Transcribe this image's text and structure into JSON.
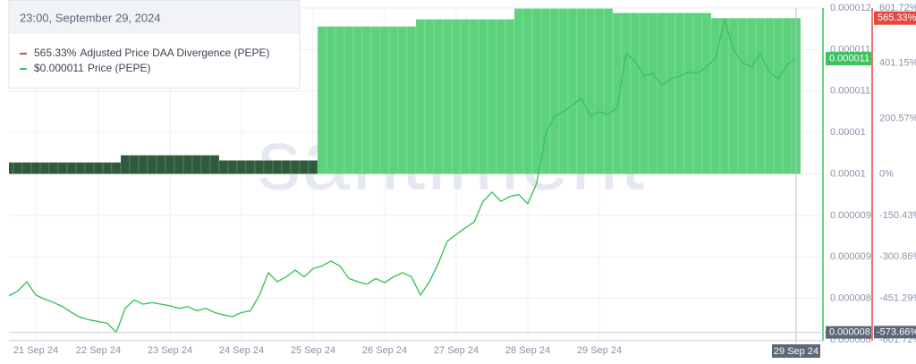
{
  "chart_data": {
    "type": "combo",
    "watermark": "santiment",
    "tooltip_title": "23:00, September 29, 2024",
    "categories": [
      null,
      null,
      null,
      "21 Sep 24",
      null,
      null,
      null,
      null,
      null,
      null,
      "22 Sep 24",
      null,
      null,
      null,
      null,
      null,
      null,
      null,
      "23 Sep 24",
      null,
      null,
      null,
      null,
      null,
      null,
      null,
      "24 Sep 24",
      null,
      null,
      null,
      null,
      null,
      null,
      null,
      "25 Sep 24",
      null,
      null,
      null,
      null,
      null,
      null,
      null,
      "26 Sep 24",
      null,
      null,
      null,
      null,
      null,
      null,
      null,
      "27 Sep 24",
      null,
      null,
      null,
      null,
      null,
      null,
      null,
      "28 Sep 24",
      null,
      null,
      null,
      null,
      null,
      null,
      null,
      "29 Sep 24",
      null,
      null,
      null,
      null,
      null,
      null,
      null,
      null,
      null,
      null,
      null,
      null,
      null,
      null,
      null,
      null,
      null,
      null,
      null,
      null,
      null,
      null
    ],
    "series": [
      {
        "name": "Adjusted Price DAA Divergence (PEPE)",
        "type": "bar",
        "axis": "y2",
        "color": "#e5483f",
        "legend_value": {
          "value": 565.33,
          "label": "565.33%"
        },
        "values": [
          42,
          42,
          42,
          42,
          42,
          42,
          42,
          42,
          42,
          42,
          42,
          42,
          42,
          68,
          68,
          68,
          68,
          68,
          68,
          68,
          68,
          68,
          68,
          68,
          49,
          49,
          49,
          49,
          49,
          49,
          49,
          49,
          49,
          49,
          49,
          535,
          535,
          535,
          535,
          535,
          535,
          535,
          535,
          535,
          535,
          535,
          561,
          561,
          561,
          561,
          561,
          561,
          561,
          561,
          561,
          561,
          561,
          600,
          600,
          600,
          600,
          600,
          600,
          600,
          600,
          600,
          600,
          600,
          584,
          584,
          584,
          584,
          584,
          584,
          584,
          584,
          584,
          584,
          584,
          565.33,
          565.33,
          565.33,
          565.33,
          565.33,
          565.33,
          565.33,
          565.33,
          565.33,
          565.33
        ],
        "colors": [
          "#2f5b3c",
          "#2f5b3c",
          "#2f5b3c",
          "#2f5b3c",
          "#2f5b3c",
          "#2f5b3c",
          "#2f5b3c",
          "#2f5b3c",
          "#2f5b3c",
          "#2f5b3c",
          "#2f5b3c",
          "#2f5b3c",
          "#2f5b3c",
          "#2f5b3c",
          "#2f5b3c",
          "#2f5b3c",
          "#2f5b3c",
          "#2f5b3c",
          "#2f5b3c",
          "#2f5b3c",
          "#2f5b3c",
          "#2f5b3c",
          "#2f5b3c",
          "#2f5b3c",
          "#2f5b3c",
          "#2f5b3c",
          "#2f5b3c",
          "#2f5b3c",
          "#2f5b3c",
          "#2f5b3c",
          "#2f5b3c",
          "#2f5b3c",
          "#2f5b3c",
          "#2f5b3c",
          "#2f5b3c",
          "#5dd27d",
          "#5dd27d",
          "#5dd27d",
          "#5dd27d",
          "#5dd27d",
          "#5dd27d",
          "#5dd27d",
          "#5dd27d",
          "#5dd27d",
          "#5dd27d",
          "#5dd27d",
          "#5dd27d",
          "#5dd27d",
          "#5dd27d",
          "#5dd27d",
          "#5dd27d",
          "#5dd27d",
          "#5dd27d",
          "#5dd27d",
          "#5dd27d",
          "#5dd27d",
          "#5dd27d",
          "#5dd27d",
          "#5dd27d",
          "#5dd27d",
          "#5dd27d",
          "#5dd27d",
          "#5dd27d",
          "#5dd27d",
          "#5dd27d",
          "#5dd27d",
          "#5dd27d",
          "#5dd27d",
          "#5dd27d",
          "#5dd27d",
          "#5dd27d",
          "#5dd27d",
          "#5dd27d",
          "#5dd27d",
          "#5dd27d",
          "#5dd27d",
          "#5dd27d",
          "#5dd27d",
          "#5dd27d",
          "#5dd27d",
          "#5dd27d",
          "#5dd27d",
          "#5dd27d",
          "#5dd27d",
          "#5dd27d",
          "#5dd27d",
          "#5dd27d",
          "#5dd27d",
          "#5dd27d"
        ]
      },
      {
        "name": "Price (PEPE)",
        "type": "line",
        "axis": "y",
        "color": "#3cc25f",
        "legend_value": {
          "value": 1.139e-05,
          "label": "$0.000011"
        },
        "marker_value": {
          "value": 1.139e-05,
          "label": "0.000011"
        },
        "values": [
          8.53e-06,
          8.59e-06,
          8.7e-06,
          8.54e-06,
          8.49e-06,
          8.45e-06,
          8.4e-06,
          8.33e-06,
          8.27e-06,
          8.24e-06,
          8.22e-06,
          8.2e-06,
          8.09e-06,
          8.38e-06,
          8.48e-06,
          8.43e-06,
          8.45e-06,
          8.43e-06,
          8.41e-06,
          8.38e-06,
          8.4e-06,
          8.35e-06,
          8.38e-06,
          8.33e-06,
          8.3e-06,
          8.28e-06,
          8.33e-06,
          8.35e-06,
          8.54e-06,
          8.81e-06,
          8.7e-06,
          8.76e-06,
          8.84e-06,
          8.76e-06,
          8.86e-06,
          8.89e-06,
          8.95e-06,
          8.89e-06,
          8.74e-06,
          8.7e-06,
          8.67e-06,
          8.74e-06,
          8.69e-06,
          8.76e-06,
          8.81e-06,
          8.76e-06,
          8.54e-06,
          8.7e-06,
          8.92e-06,
          9.19e-06,
          9.27e-06,
          9.35e-06,
          9.42e-06,
          9.67e-06,
          9.78e-06,
          9.67e-06,
          9.73e-06,
          9.75e-06,
          9.64e-06,
          9.89e-06,
          1.048e-05,
          1.07e-05,
          1.075e-05,
          1.083e-05,
          1.091e-05,
          1.07e-05,
          1.075e-05,
          1.072e-05,
          1.08e-05,
          1.145e-05,
          1.136e-05,
          1.118e-05,
          1.121e-05,
          1.107e-05,
          1.115e-05,
          1.118e-05,
          1.123e-05,
          1.121e-05,
          1.129e-05,
          1.14e-05,
          1.186e-05,
          1.15e-05,
          1.134e-05,
          1.129e-05,
          1.145e-05,
          1.123e-05,
          1.115e-05,
          1.132e-05,
          1.139e-05
        ]
      }
    ],
    "ylim": [
      8e-06,
      1.2e-05
    ],
    "yticks": [
      1.2e-05,
      {
        "value": 1.15e-05,
        "label": "0.000011"
      },
      1.1e-05,
      {
        "value": 1.05e-05,
        "label": "0.00001"
      },
      1e-05,
      {
        "value": 9.5e-06,
        "label": "0.000009"
      },
      9e-06,
      {
        "value": 8.5e-06,
        "label": "0.000008"
      },
      8e-06
    ],
    "y2lim": [
      -601.72,
      601.72
    ],
    "y2ticks": [
      {
        "value": 601.72,
        "label": "601.72%"
      },
      {
        "value": 401.15,
        "label": "401.15%"
      },
      {
        "value": 200.57,
        "label": "200.57%"
      },
      {
        "value": 0,
        "label": "0%"
      },
      {
        "value": -150.43,
        "label": "-150.43%"
      },
      {
        "value": -300.86,
        "label": "-300.86%"
      },
      {
        "value": -451.29,
        "label": "-451.29%"
      },
      {
        "value": -601.72,
        "label": "-601.72%"
      }
    ],
    "grid": true,
    "crosshair": {
      "x_label": "29 Sep 24",
      "y": {
        "value": 8.09e-06,
        "label": "0.000008"
      },
      "y2": {
        "value": -573.66,
        "label": "-573.66%"
      }
    }
  }
}
